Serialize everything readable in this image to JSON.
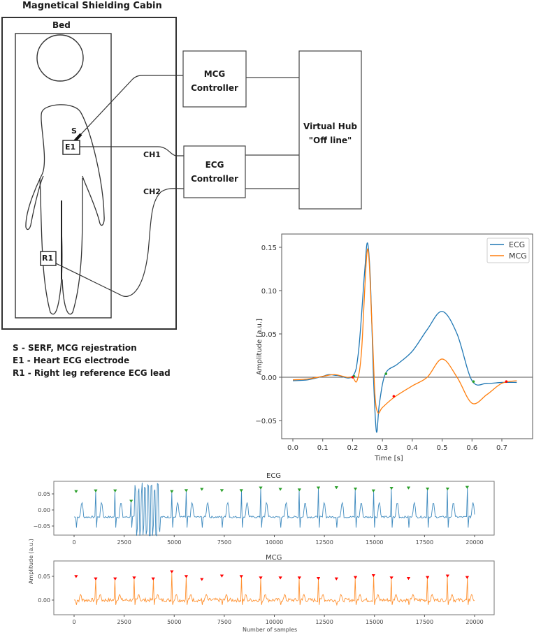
{
  "diagram": {
    "cabin_title": "Magnetical Shielding Cabin",
    "bed_label": "Bed",
    "sensor_label": "S",
    "electrode_e1": "E1",
    "electrode_r1": "R1",
    "channel_1": "CH1",
    "channel_2": "CH2",
    "mcg_controller": [
      "MCG",
      "Controller"
    ],
    "ecg_controller": [
      "ECG",
      "Controller"
    ],
    "virtual_hub": [
      "Virtual Hub",
      "\"Off line\""
    ],
    "legend_lines": [
      "S - SERF, MCG rejestration",
      "E1 - Heart ECG electrode",
      "R1 - Right leg reference ECG lead"
    ]
  },
  "chart_data": [
    {
      "type": "line",
      "title": "",
      "xlabel": "Time [s]",
      "ylabel": "Amplitude [a.u.]",
      "xlim": [
        0.0,
        0.75
      ],
      "ylim": [
        -0.075,
        0.165
      ],
      "xticks": [
        "0.0",
        "0.1",
        "0.2",
        "0.3",
        "0.4",
        "0.5",
        "0.6",
        "0.7"
      ],
      "yticks": [
        "-0.05",
        "0.00",
        "0.05",
        "0.10",
        "0.15"
      ],
      "legend": [
        "ECG",
        "MCG"
      ],
      "legend_position": "upper right",
      "grid": false,
      "zero_line": true,
      "series": [
        {
          "name": "ECG",
          "color": "#1f77b4",
          "x": [
            0.0,
            0.05,
            0.1,
            0.12,
            0.15,
            0.2,
            0.22,
            0.24,
            0.25,
            0.26,
            0.27,
            0.28,
            0.29,
            0.31,
            0.35,
            0.4,
            0.45,
            0.5,
            0.55,
            0.6,
            0.65,
            0.7,
            0.75
          ],
          "y": [
            -0.004,
            -0.003,
            0.001,
            0.003,
            0.002,
            0.001,
            0.03,
            0.12,
            0.155,
            0.11,
            0.0,
            -0.063,
            -0.03,
            0.004,
            0.015,
            0.03,
            0.055,
            0.076,
            0.05,
            -0.004,
            -0.007,
            -0.006,
            -0.006
          ],
          "markers": [
            [
              0.205,
              0.001
            ],
            [
              0.312,
              0.004
            ],
            [
              0.605,
              -0.005
            ]
          ],
          "marker_color": "#2ca02c"
        },
        {
          "name": "MCG",
          "color": "#ff7f0e",
          "x": [
            0.0,
            0.05,
            0.1,
            0.14,
            0.18,
            0.2,
            0.215,
            0.23,
            0.25,
            0.265,
            0.275,
            0.285,
            0.3,
            0.34,
            0.4,
            0.45,
            0.5,
            0.55,
            0.6,
            0.65,
            0.7,
            0.75
          ],
          "y": [
            -0.003,
            -0.002,
            0.001,
            0.003,
            0.0,
            0.0,
            -0.004,
            0.03,
            0.148,
            0.06,
            -0.02,
            -0.041,
            -0.035,
            -0.023,
            -0.01,
            0.0,
            0.021,
            0.0,
            -0.03,
            -0.02,
            -0.007,
            -0.004
          ],
          "markers": [
            [
              0.2,
              0.0
            ],
            [
              0.338,
              -0.022
            ],
            [
              0.715,
              -0.005
            ]
          ],
          "marker_color": "#ff0000"
        }
      ]
    },
    {
      "type": "line",
      "title": "ECG",
      "xlabel": "",
      "ylabel": "Amplitude (a.u.)",
      "xlim": [
        -1000,
        21000
      ],
      "ylim": [
        -0.08,
        0.085
      ],
      "xticks": [
        "0",
        "2500",
        "5000",
        "7500",
        "10000",
        "12500",
        "15000",
        "17500",
        "20000"
      ],
      "yticks": [
        "-0.05",
        "0.00",
        "0.05"
      ],
      "series": [
        {
          "name": "ECG",
          "color": "#1f77b4",
          "peak_samples": [
            100,
            1080,
            2050,
            2850,
            4880,
            5600,
            6380,
            7380,
            8350,
            9320,
            10300,
            11250,
            12200,
            13100,
            14050,
            14950,
            15850,
            16700,
            17650,
            18650,
            19630
          ],
          "peak_values": [
            0.055,
            0.057,
            0.057,
            0.025,
            0.055,
            0.058,
            0.062,
            0.058,
            0.058,
            0.066,
            0.062,
            0.06,
            0.066,
            0.067,
            0.063,
            0.057,
            0.065,
            0.066,
            0.063,
            0.063,
            0.068
          ],
          "marker_color": "#2ca02c",
          "artifact_range": [
            3000,
            4300
          ]
        }
      ]
    },
    {
      "type": "line",
      "title": "MCG",
      "xlabel": "Number of samples",
      "ylabel": "Amplitude (a.u.)",
      "xlim": [
        -1000,
        21000
      ],
      "ylim": [
        -0.03,
        0.08
      ],
      "xticks": [
        "0",
        "2500",
        "5000",
        "7500",
        "10000",
        "12500",
        "15000",
        "17500",
        "20000"
      ],
      "yticks": [
        "0.00",
        "0.05"
      ],
      "series": [
        {
          "name": "MCG",
          "color": "#ff7f0e",
          "peak_samples": [
            100,
            1080,
            2050,
            3000,
            3950,
            4880,
            5600,
            6380,
            7380,
            8350,
            9320,
            10300,
            11250,
            12200,
            13100,
            14050,
            14950,
            15850,
            16700,
            17650,
            18650,
            19630
          ],
          "peak_values": [
            0.048,
            0.043,
            0.043,
            0.045,
            0.043,
            0.058,
            0.048,
            0.042,
            0.049,
            0.048,
            0.045,
            0.045,
            0.045,
            0.044,
            0.043,
            0.046,
            0.05,
            0.045,
            0.044,
            0.046,
            0.049,
            0.046
          ],
          "marker_color": "#ff0000"
        }
      ]
    }
  ]
}
